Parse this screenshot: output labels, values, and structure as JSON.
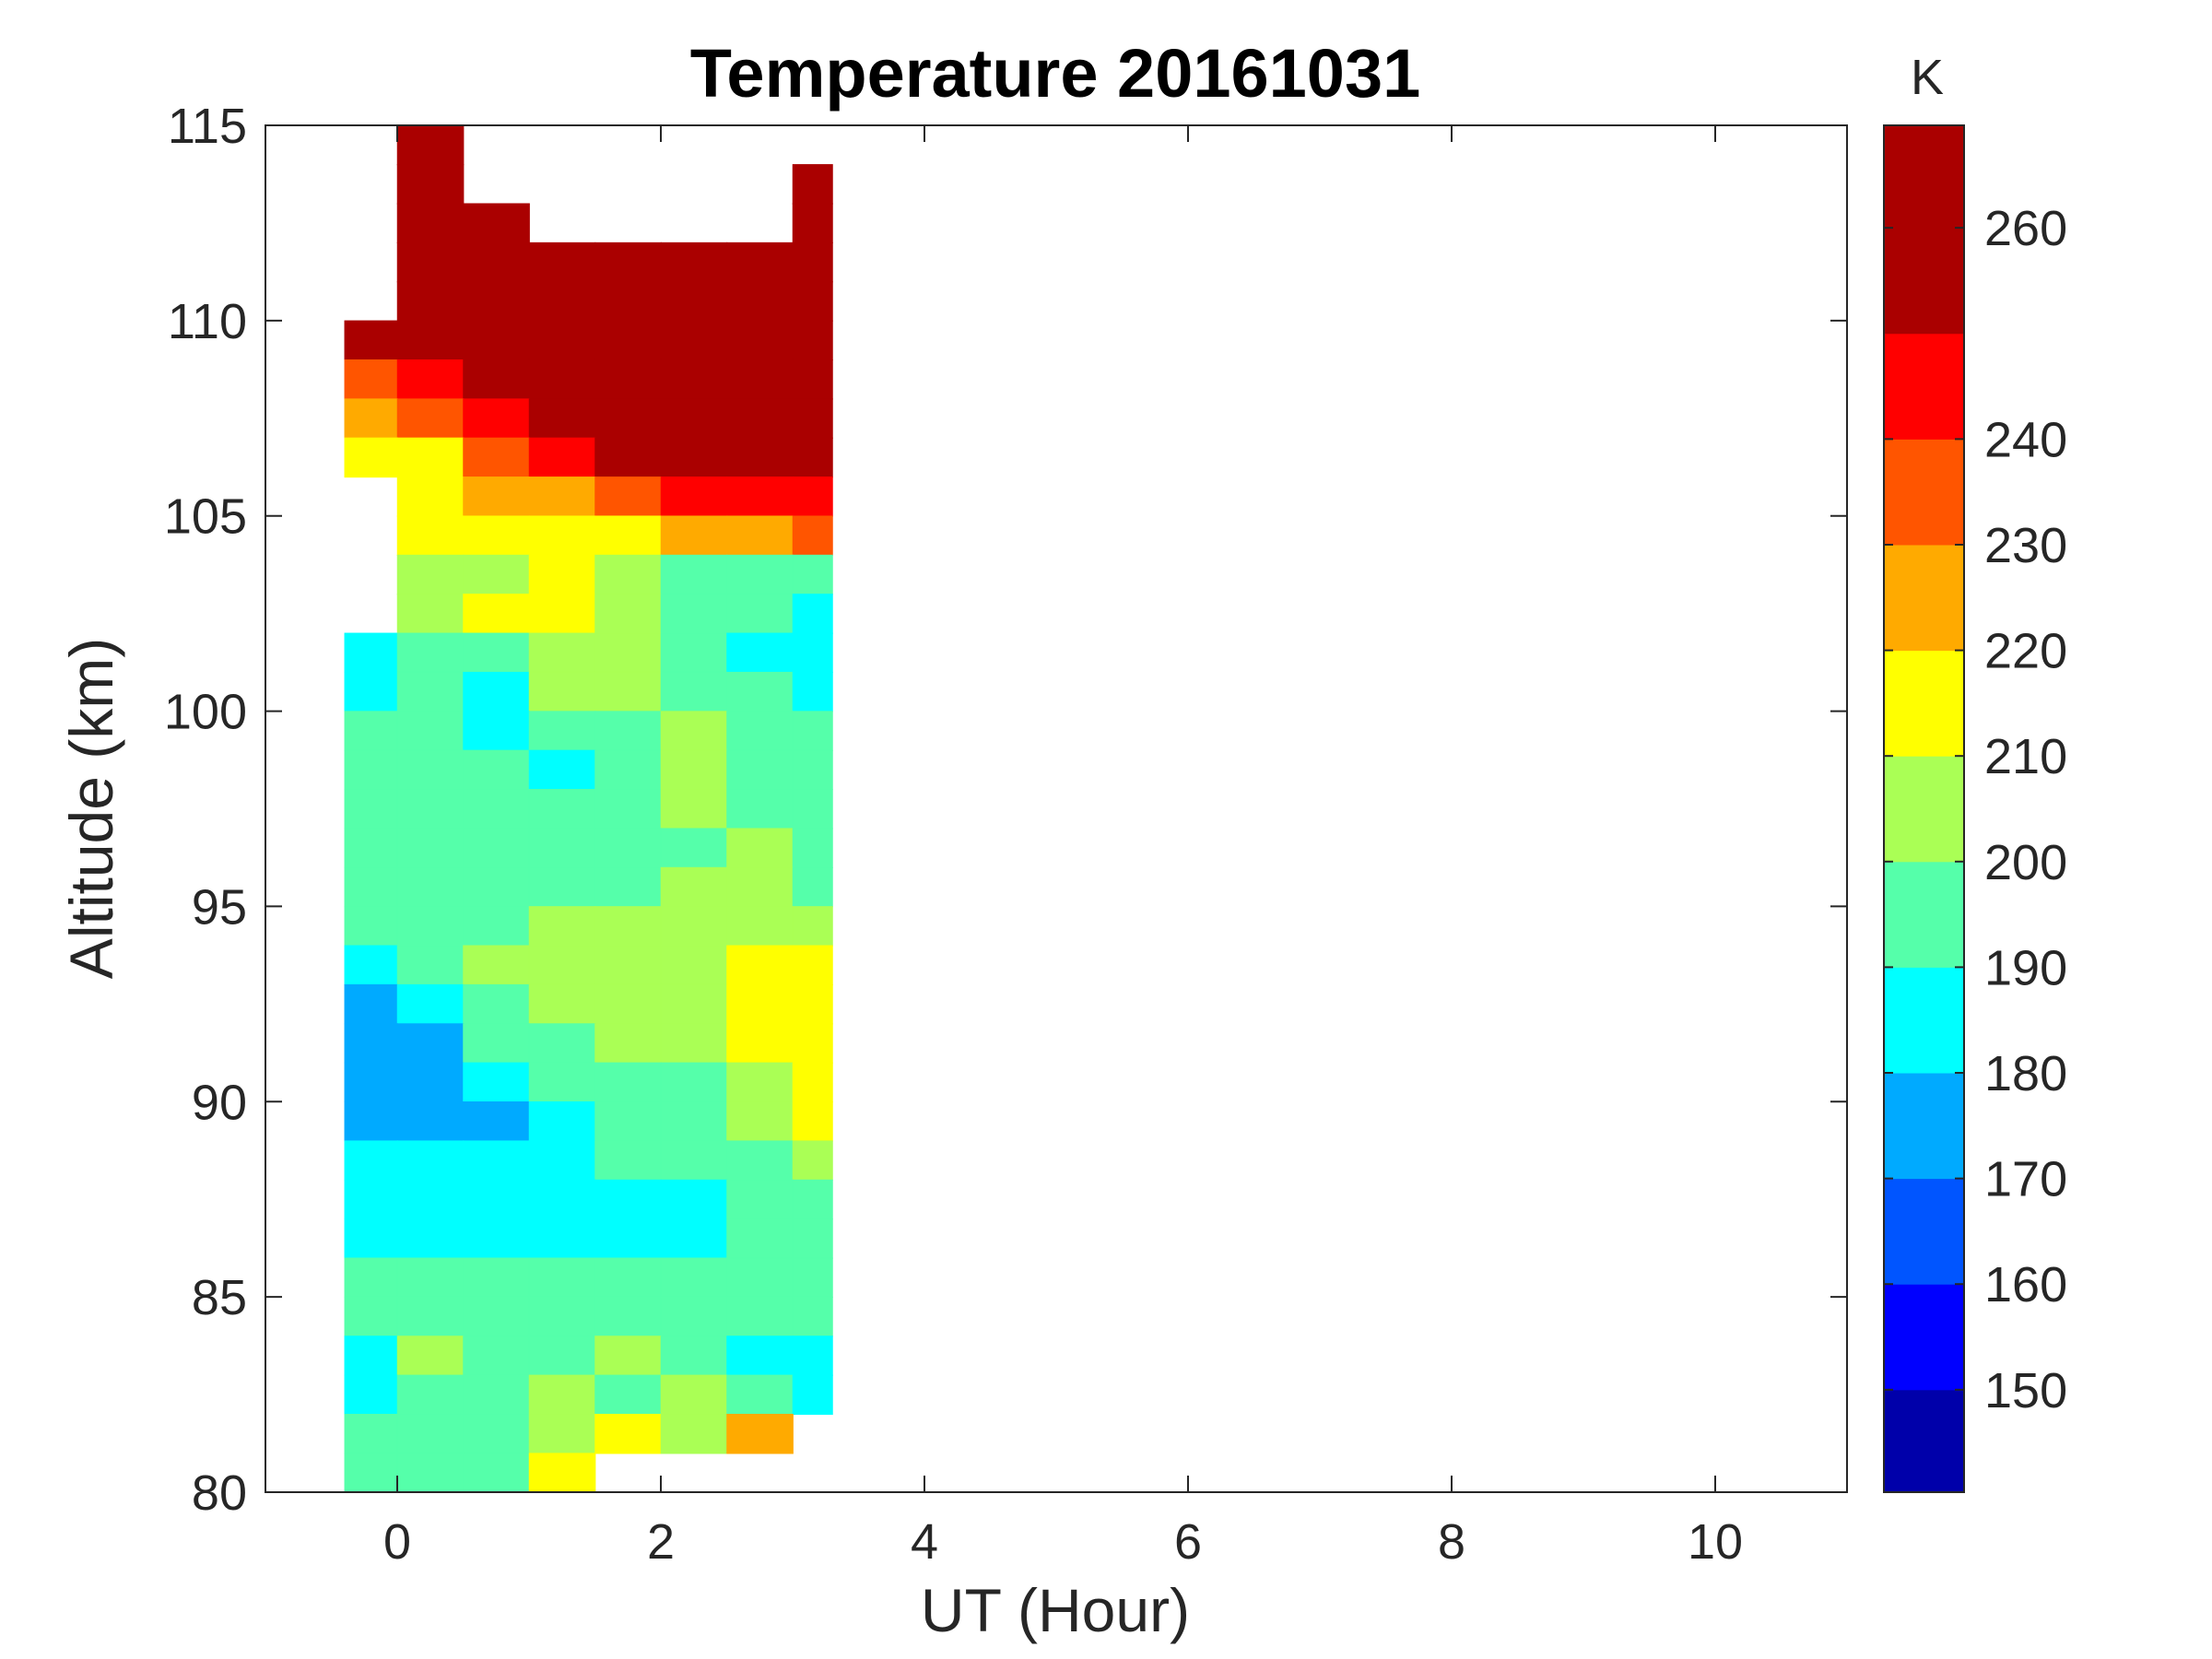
{
  "chart_data": {
    "type": "heatmap",
    "subtype": "filled-contour",
    "title": "Temperature 20161031",
    "xlabel": "UT (Hour)",
    "ylabel": "Altitude (km)",
    "xlim": [
      -1,
      11
    ],
    "ylim": [
      80,
      115
    ],
    "xticks": [
      0,
      2,
      4,
      6,
      8,
      10
    ],
    "yticks": [
      80,
      85,
      90,
      95,
      100,
      105,
      110,
      115
    ],
    "colorbar": {
      "unit_label": "K",
      "clim": [
        140.3,
        269.7
      ],
      "ticks": [
        150,
        160,
        170,
        180,
        190,
        200,
        210,
        220,
        230,
        240,
        260
      ],
      "tick_labels_shown": [
        "150",
        "160",
        "170",
        "180",
        "190",
        "200",
        "210",
        "220",
        "230",
        "240",
        "260"
      ],
      "level_edges": [
        140.3,
        150,
        160,
        170,
        180,
        190,
        200,
        210,
        220,
        230,
        240,
        250,
        269.7
      ],
      "colors": [
        "#0000AA",
        "#0000FF",
        "#0055FF",
        "#00AAFF",
        "#00FFFF",
        "#55FFAA",
        "#AAFF55",
        "#FFFF00",
        "#FFAA00",
        "#FF5500",
        "#FF0000",
        "#AA0000"
      ]
    },
    "data_x_range": [
      -0.4,
      3.3
    ],
    "x_centers": [
      -0.25,
      0.25,
      0.75,
      1.25,
      1.75,
      2.25,
      2.75,
      3.25
    ],
    "y_centers": [
      114.5,
      113.5,
      112.5,
      111.5,
      110.5,
      109.5,
      108.5,
      107.5,
      106.5,
      105.5,
      104.5,
      103.5,
      102.5,
      101.5,
      100.5,
      99.5,
      98.5,
      97.5,
      96.5,
      95.5,
      94.5,
      93.5,
      92.5,
      91.5,
      90.5,
      89.5,
      88.5,
      87.5,
      86.5,
      85.5,
      84.5,
      83.5,
      82.5,
      81.5,
      80.5
    ],
    "values": [
      [
        null,
        265,
        null,
        null,
        null,
        null,
        null,
        null
      ],
      [
        null,
        265,
        null,
        null,
        null,
        null,
        null,
        262
      ],
      [
        null,
        265,
        265,
        null,
        null,
        null,
        null,
        255
      ],
      [
        null,
        265,
        265,
        262,
        265,
        262,
        255,
        262
      ],
      [
        null,
        265,
        265,
        265,
        265,
        265,
        262,
        265
      ],
      [
        250,
        265,
        265,
        265,
        265,
        265,
        265,
        265
      ],
      [
        235,
        245,
        260,
        265,
        265,
        265,
        265,
        262
      ],
      [
        225,
        230,
        240,
        255,
        262,
        260,
        265,
        255
      ],
      [
        215,
        215,
        230,
        240,
        262,
        250,
        260,
        250
      ],
      [
        null,
        210,
        225,
        225,
        235,
        245,
        245,
        245
      ],
      [
        null,
        215,
        212,
        210,
        215,
        225,
        220,
        230
      ],
      [
        null,
        205,
        208,
        215,
        205,
        195,
        195,
        192
      ],
      [
        null,
        200,
        215,
        210,
        200,
        195,
        190,
        185
      ],
      [
        180,
        198,
        195,
        205,
        202,
        195,
        185,
        182
      ],
      [
        185,
        195,
        185,
        200,
        200,
        198,
        195,
        185
      ],
      [
        190,
        192,
        188,
        195,
        198,
        200,
        195,
        192
      ],
      [
        192,
        192,
        190,
        185,
        195,
        200,
        198,
        195
      ],
      [
        192,
        192,
        193,
        192,
        195,
        200,
        198,
        195
      ],
      [
        193,
        192,
        192,
        192,
        192,
        198,
        202,
        195
      ],
      [
        192,
        192,
        192,
        192,
        195,
        202,
        202,
        196
      ],
      [
        192,
        192,
        195,
        200,
        202,
        200,
        205,
        205
      ],
      [
        185,
        190,
        200,
        205,
        205,
        202,
        210,
        212
      ],
      [
        175,
        185,
        195,
        202,
        202,
        203,
        212,
        212
      ],
      [
        175,
        178,
        190,
        198,
        202,
        200,
        210,
        215
      ],
      [
        175,
        175,
        185,
        192,
        198,
        198,
        205,
        215
      ],
      [
        175,
        175,
        178,
        188,
        195,
        195,
        200,
        210
      ],
      [
        182,
        180,
        182,
        185,
        190,
        190,
        198,
        202
      ],
      [
        185,
        185,
        185,
        185,
        185,
        185,
        195,
        195
      ],
      [
        185,
        185,
        185,
        188,
        188,
        185,
        192,
        195
      ],
      [
        192,
        190,
        190,
        192,
        195,
        192,
        192,
        195
      ],
      [
        192,
        195,
        192,
        198,
        195,
        195,
        192,
        192
      ],
      [
        188,
        200,
        192,
        198,
        200,
        195,
        188,
        185
      ],
      [
        188,
        195,
        195,
        200,
        198,
        200,
        195,
        185
      ],
      [
        192,
        192,
        195,
        205,
        215,
        205,
        220,
        null
      ],
      [
        192,
        195,
        195,
        210,
        null,
        null,
        null,
        null
      ]
    ]
  }
}
